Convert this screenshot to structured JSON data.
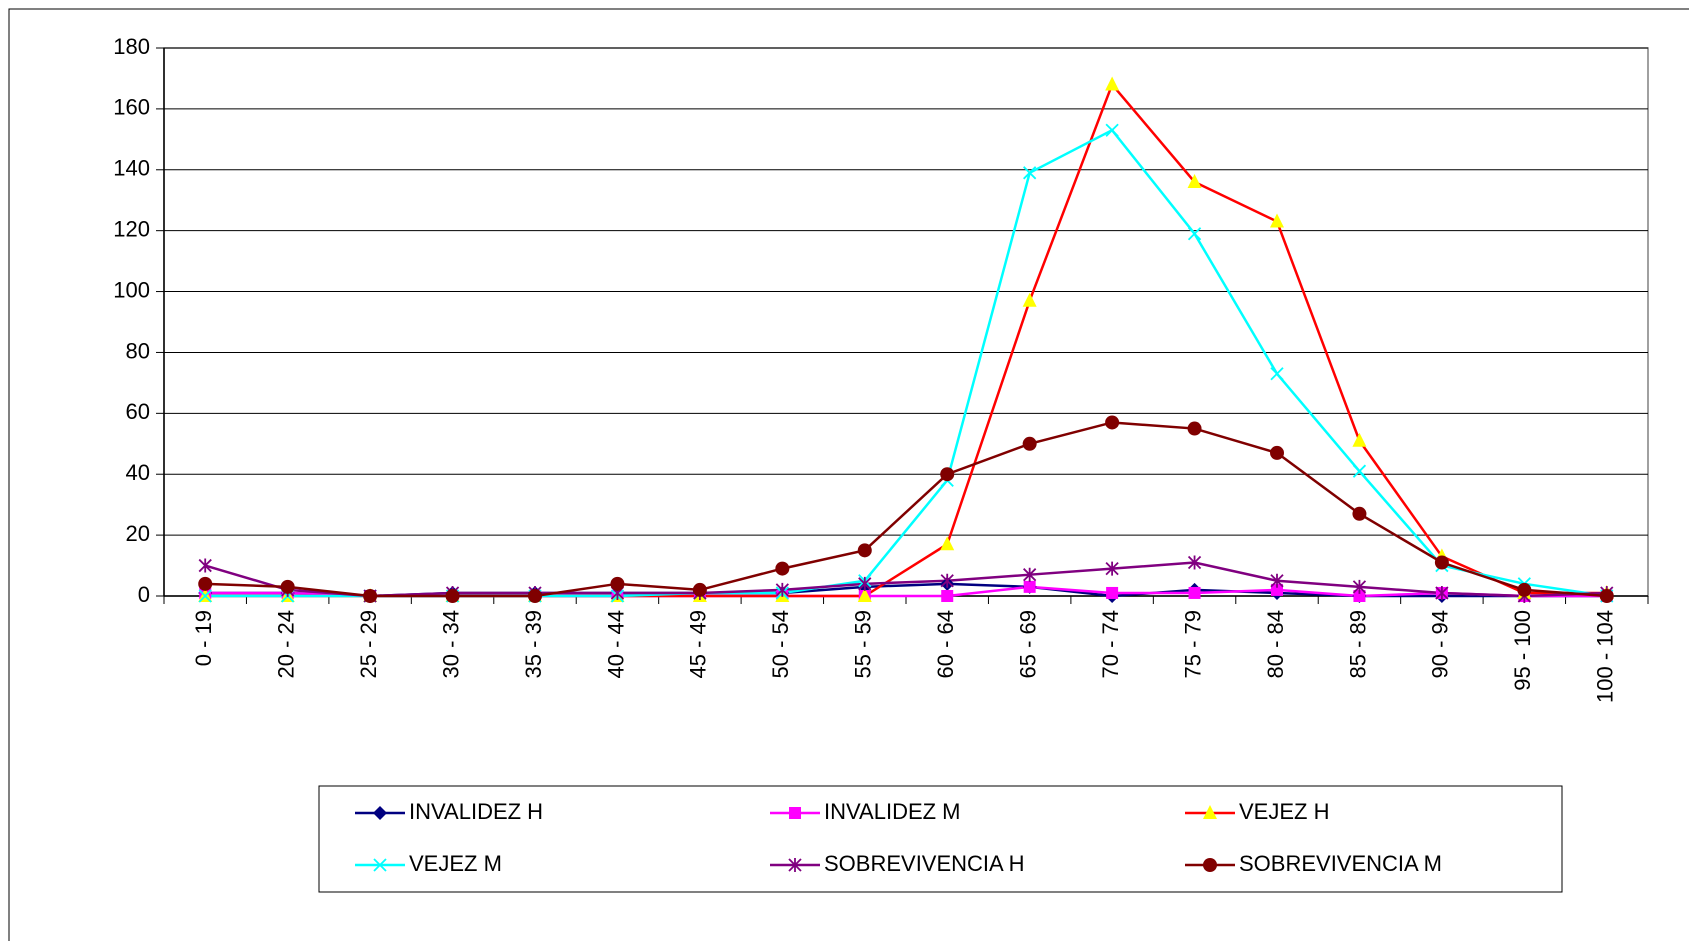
{
  "chart_data": {
    "type": "line",
    "categories": [
      "0 - 19",
      "20 - 24",
      "25 - 29",
      "30 - 34",
      "35 - 39",
      "40 - 44",
      "45 - 49",
      "50 - 54",
      "55 - 59",
      "60 - 64",
      "65 - 69",
      "70 - 74",
      "75 - 79",
      "80 - 84",
      "85 - 89",
      "90 - 94",
      "95 - 100",
      "100 - 104"
    ],
    "series": [
      {
        "name": "INVALIDEZ H",
        "color": "#000080",
        "marker_color": "#000080",
        "marker": "diamond",
        "values": [
          1,
          1,
          0,
          1,
          1,
          1,
          1,
          1,
          3,
          4,
          3,
          0,
          2,
          1,
          0,
          0,
          0,
          0
        ]
      },
      {
        "name": "INVALIDEZ M",
        "color": "#ff00ff",
        "marker_color": "#ff00ff",
        "marker": "square",
        "values": [
          1,
          1,
          0,
          0,
          0,
          0,
          0,
          0,
          0,
          0,
          3,
          1,
          1,
          2,
          0,
          1,
          0,
          0
        ]
      },
      {
        "name": "VEJEZ H",
        "color": "#ff0000",
        "marker_color": "#ffff00",
        "marker": "triangle",
        "values": [
          0,
          0,
          0,
          0,
          0,
          0,
          0,
          0,
          0,
          17,
          97,
          168,
          136,
          123,
          51,
          13,
          1,
          1
        ]
      },
      {
        "name": "VEJEZ M",
        "color": "#00ffff",
        "marker_color": "#00ffff",
        "marker": "x",
        "values": [
          0,
          0,
          0,
          0,
          0,
          0,
          1,
          1,
          5,
          38,
          139,
          153,
          119,
          73,
          41,
          10,
          4,
          0
        ]
      },
      {
        "name": "SOBREVIVENCIA H",
        "color": "#800080",
        "marker_color": "#800080",
        "marker": "star",
        "values": [
          10,
          2,
          0,
          1,
          1,
          1,
          1,
          2,
          4,
          5,
          7,
          9,
          11,
          5,
          3,
          1,
          0,
          1
        ]
      },
      {
        "name": "SOBREVIVENCIA M",
        "color": "#800000",
        "marker_color": "#800000",
        "marker": "circle",
        "values": [
          4,
          3,
          0,
          0,
          0,
          4,
          2,
          9,
          15,
          40,
          50,
          57,
          55,
          47,
          27,
          11,
          2,
          0
        ]
      }
    ],
    "ylim": [
      0,
      180
    ],
    "yticks": [
      0,
      20,
      40,
      60,
      80,
      100,
      120,
      140,
      160,
      180
    ],
    "grid": true,
    "legend": "bottom"
  }
}
